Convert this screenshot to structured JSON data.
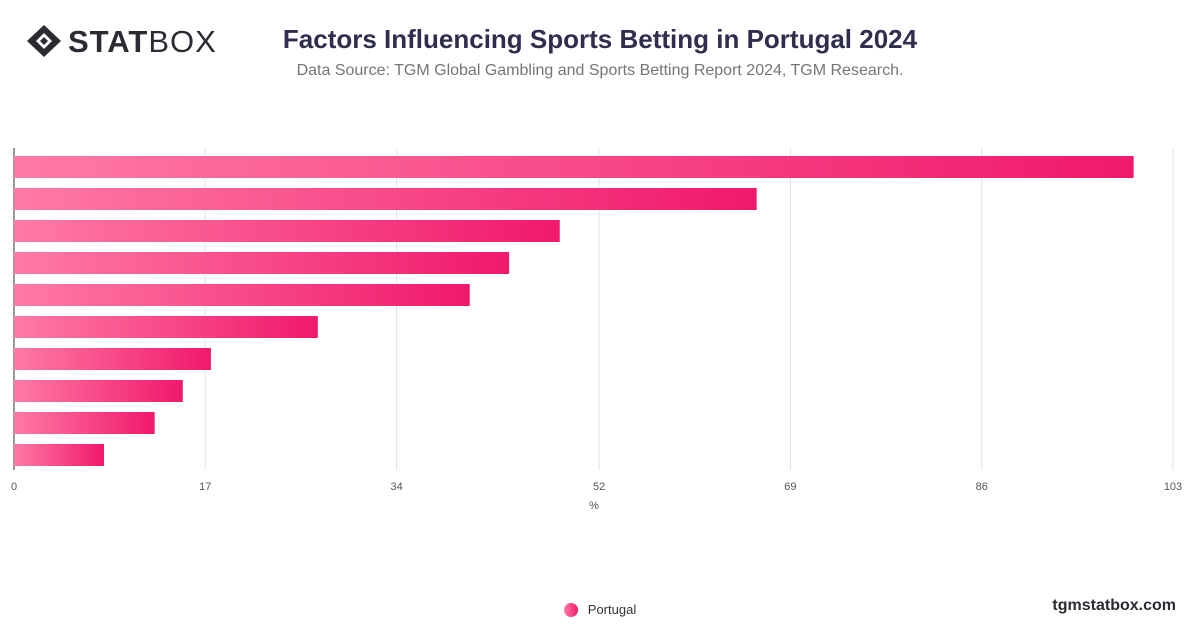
{
  "brand": {
    "logo_bold": "STAT",
    "logo_light": "BOX",
    "url": "tgmstatbox.com"
  },
  "chart_data": {
    "type": "bar",
    "orientation": "horizontal",
    "title": "Factors Influencing Sports Betting in Portugal 2024",
    "subtitle": "Data Source: TGM Global Gambling and Sports Betting Report 2024, TGM Research.",
    "xlabel": "%",
    "xlim": [
      0,
      103
    ],
    "xticks": [
      "0",
      "17",
      "34",
      "52",
      "69",
      "86",
      "103"
    ],
    "grid": true,
    "legend_position": "bottom",
    "series": [
      {
        "name": "Portugal",
        "values": [
          99.5,
          66,
          48.5,
          44,
          40.5,
          27,
          17.5,
          15,
          12.5,
          8
        ]
      }
    ],
    "colors": {
      "bar_start": "#ff7aa6",
      "bar_end": "#f0196b"
    }
  }
}
